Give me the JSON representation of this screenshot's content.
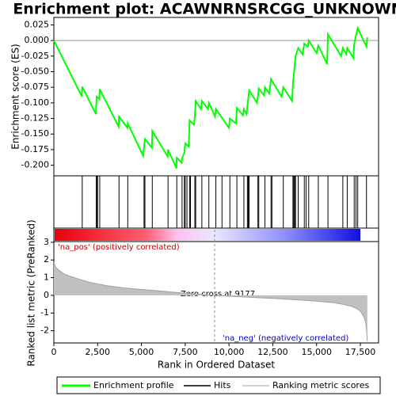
{
  "chart_data": [
    {
      "type": "line",
      "title": "Enrichment plot: ACAWNRNSRCGG_UNKNOWN",
      "ylabel": "Enrichment score (ES)",
      "series": [
        {
          "name": "Enrichment profile",
          "color": "#00ff00",
          "x": [
            0,
            1600,
            1620,
            2400,
            2420,
            2450,
            2600,
            2620,
            3700,
            3720,
            4200,
            4220,
            5100,
            5150,
            5200,
            5600,
            5620,
            6500,
            6520,
            7000,
            7020,
            7300,
            7320,
            7450,
            7500,
            7700,
            7750,
            8000,
            8050,
            8100,
            8400,
            8450,
            8800,
            8850,
            9200,
            9250,
            10000,
            10050,
            10400,
            10450,
            10800,
            10850,
            11000,
            11050,
            11150,
            11600,
            11650,
            11700,
            12000,
            12050,
            12300,
            12400,
            13000,
            13100,
            13600,
            13650,
            13700,
            13800,
            13950,
            14200,
            14300,
            14500,
            14550,
            15000,
            15100,
            15600,
            15650,
            16400,
            16500,
            16700,
            16750,
            17100,
            17150,
            17250,
            17350,
            17850,
            17900
          ],
          "values": [
            0,
            -0.09,
            -0.074,
            -0.118,
            -0.104,
            -0.09,
            -0.094,
            -0.078,
            -0.138,
            -0.122,
            -0.14,
            -0.133,
            -0.185,
            -0.17,
            -0.158,
            -0.172,
            -0.145,
            -0.186,
            -0.175,
            -0.205,
            -0.188,
            -0.196,
            -0.188,
            -0.18,
            -0.165,
            -0.17,
            -0.128,
            -0.135,
            -0.122,
            -0.097,
            -0.11,
            -0.097,
            -0.11,
            -0.1,
            -0.122,
            -0.11,
            -0.14,
            -0.125,
            -0.133,
            -0.108,
            -0.12,
            -0.11,
            -0.118,
            -0.105,
            -0.08,
            -0.1,
            -0.09,
            -0.077,
            -0.088,
            -0.075,
            -0.085,
            -0.062,
            -0.09,
            -0.075,
            -0.097,
            -0.068,
            -0.055,
            -0.025,
            -0.012,
            -0.022,
            -0.005,
            -0.01,
            0.0,
            -0.02,
            -0.008,
            -0.038,
            0.01,
            -0.025,
            -0.012,
            -0.022,
            -0.012,
            -0.028,
            -0.005,
            0.008,
            0.02,
            -0.01,
            0.005
          ]
        }
      ],
      "xlim": [
        0,
        18540
      ],
      "ylim": [
        -0.217,
        0.037
      ],
      "yticks": [
        0.025,
        {
          "value": 0,
          "label": "0.000"
        },
        -0.025,
        {
          "value": -0.05,
          "label": "-0.050"
        },
        -0.075,
        {
          "value": -0.1,
          "label": "-0.100"
        },
        -0.125,
        {
          "value": -0.15,
          "label": "-0.150"
        },
        -0.175,
        {
          "value": -0.2,
          "label": "-0.200"
        }
      ]
    },
    {
      "type": "hits",
      "series": [
        {
          "name": "Hits",
          "color": "#000000",
          "x": [
            1620,
            2420,
            2450,
            2500,
            2620,
            3720,
            4220,
            5150,
            5200,
            5620,
            6520,
            7020,
            7320,
            7450,
            7500,
            7600,
            7750,
            7800,
            8050,
            8100,
            8450,
            8850,
            9250,
            9600,
            10050,
            10450,
            10850,
            11050,
            11100,
            11150,
            11650,
            11700,
            12050,
            12400,
            12450,
            13100,
            13650,
            13700,
            13750,
            13800,
            13950,
            14300,
            14400,
            14550,
            15100,
            15650,
            16500,
            16750,
            17150,
            17250,
            17350,
            17850
          ]
        }
      ],
      "xlim": [
        0,
        18540
      ]
    },
    {
      "type": "area",
      "ylabel": "Ranked list metric (PreRanked)",
      "xlabel": "Rank in Ordered Dataset",
      "series": [
        {
          "name": "Ranking metric scores",
          "color": "#c0c0c0",
          "x": [
            0,
            100,
            300,
            600,
            1000,
            1500,
            2000,
            3000,
            4000,
            5000,
            6000,
            7000,
            8000,
            9177,
            10000,
            11000,
            12000,
            13000,
            14000,
            15000,
            16000,
            16500,
            17000,
            17300,
            17500,
            17700,
            17800,
            17850,
            17900
          ],
          "values": [
            1.85,
            1.6,
            1.4,
            1.2,
            1.05,
            0.9,
            0.75,
            0.55,
            0.42,
            0.33,
            0.25,
            0.16,
            0.08,
            0,
            -0.05,
            -0.1,
            -0.15,
            -0.2,
            -0.26,
            -0.33,
            -0.42,
            -0.5,
            -0.62,
            -0.75,
            -0.9,
            -1.2,
            -1.5,
            -1.9,
            -2.6
          ]
        }
      ],
      "xlim": [
        0,
        18540
      ],
      "ylim": [
        -2.69,
        3.04
      ],
      "yticks": [
        -2,
        -1,
        0,
        1,
        2,
        3
      ],
      "xticks": [
        0,
        {
          "value": 2500,
          "label": "2,500"
        },
        {
          "value": 5000,
          "label": "5,000"
        },
        {
          "value": 7500,
          "label": "7,500"
        },
        {
          "value": 10000,
          "label": "10,000"
        },
        {
          "value": 12500,
          "label": "12,500"
        },
        {
          "value": 15000,
          "label": "15,000"
        },
        {
          "value": 17500,
          "label": "17,500"
        }
      ],
      "zero_cross": 9177,
      "annotations": [
        "'na_pos' (positively correlated)",
        "Zero cross at 9177",
        "'na_neg' (negatively correlated)"
      ]
    }
  ]
}
